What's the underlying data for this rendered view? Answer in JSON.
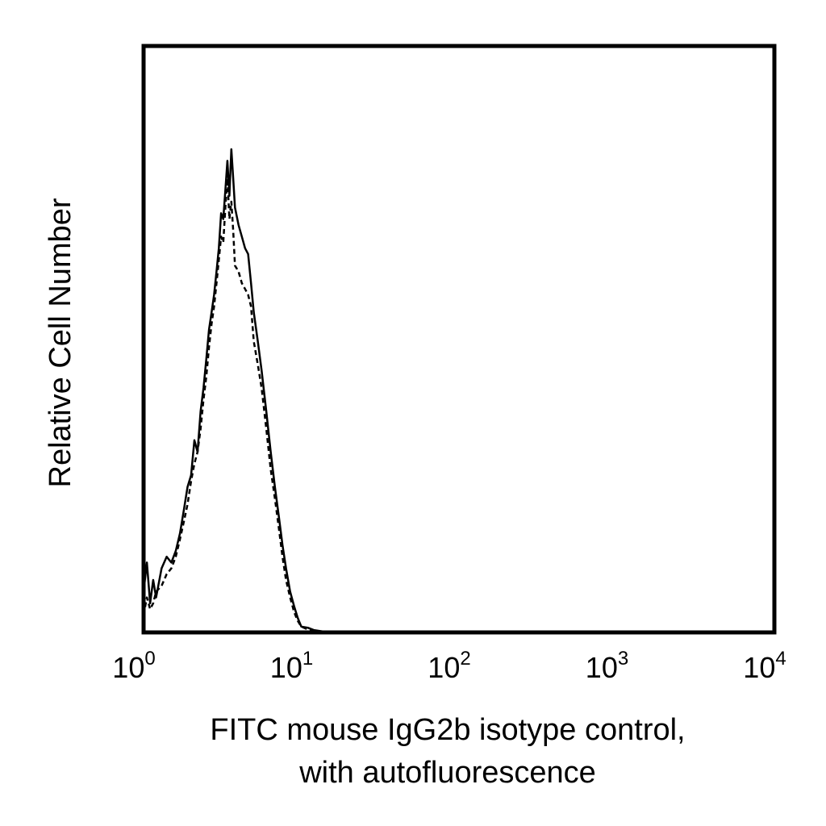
{
  "chart_data": {
    "type": "line",
    "title": "",
    "xlabel": "FITC mouse IgG2b isotype control,",
    "xlabel_line2": "with autofluorescence",
    "ylabel": "Relative Cell Number",
    "x_scale": "log",
    "xlim": [
      1,
      10000
    ],
    "ylim": [
      0,
      1
    ],
    "x_ticks": [
      {
        "base": "10",
        "exp": "0"
      },
      {
        "base": "10",
        "exp": "1"
      },
      {
        "base": "10",
        "exp": "2"
      },
      {
        "base": "10",
        "exp": "3"
      },
      {
        "base": "10",
        "exp": "4"
      }
    ],
    "grid": false,
    "series": [
      {
        "style": "solid",
        "color": "#000000",
        "x": [
          1.0,
          1.05,
          1.1,
          1.15,
          1.2,
          1.3,
          1.4,
          1.5,
          1.6,
          1.7,
          1.8,
          1.9,
          2.0,
          2.1,
          2.2,
          2.3,
          2.4,
          2.5,
          2.6,
          2.7,
          2.8,
          2.9,
          3.0,
          3.1,
          3.2,
          3.3,
          3.4,
          3.5,
          3.6,
          3.7,
          3.8,
          4.0,
          4.2,
          4.4,
          4.6,
          4.8,
          5.0,
          5.3,
          5.6,
          6.0,
          6.4,
          6.8,
          7.2,
          7.6,
          8.0,
          8.5,
          9.0,
          9.5,
          10.0,
          11.0,
          12.0,
          15.0,
          20.0,
          50.0,
          100.0,
          1000.0,
          10000.0
        ],
        "y": [
          0.07,
          0.12,
          0.05,
          0.09,
          0.06,
          0.11,
          0.13,
          0.12,
          0.14,
          0.17,
          0.21,
          0.25,
          0.27,
          0.33,
          0.31,
          0.38,
          0.42,
          0.47,
          0.52,
          0.55,
          0.58,
          0.62,
          0.66,
          0.72,
          0.71,
          0.76,
          0.81,
          0.75,
          0.83,
          0.78,
          0.73,
          0.7,
          0.68,
          0.66,
          0.65,
          0.6,
          0.55,
          0.5,
          0.45,
          0.38,
          0.31,
          0.25,
          0.2,
          0.15,
          0.11,
          0.07,
          0.045,
          0.025,
          0.01,
          0.008,
          0.004,
          0.0,
          0.0,
          0.0,
          0.0,
          0.0,
          0.0
        ]
      },
      {
        "style": "dashed",
        "color": "#000000",
        "x": [
          1.0,
          1.05,
          1.1,
          1.15,
          1.2,
          1.3,
          1.4,
          1.5,
          1.6,
          1.7,
          1.8,
          1.9,
          2.0,
          2.1,
          2.2,
          2.3,
          2.4,
          2.5,
          2.6,
          2.7,
          2.8,
          2.9,
          3.0,
          3.1,
          3.2,
          3.3,
          3.4,
          3.5,
          3.6,
          3.7,
          3.8,
          4.0,
          4.2,
          4.4,
          4.6,
          4.8,
          5.0,
          5.3,
          5.6,
          6.0,
          6.4,
          6.8,
          7.2,
          7.6,
          8.0,
          8.5,
          9.0,
          9.5,
          10.0,
          11.0,
          12.0,
          15.0,
          20.0,
          50.0,
          100.0,
          1000.0,
          10000.0
        ],
        "y": [
          0.03,
          0.06,
          0.04,
          0.05,
          0.07,
          0.08,
          0.1,
          0.11,
          0.13,
          0.16,
          0.19,
          0.22,
          0.26,
          0.29,
          0.31,
          0.35,
          0.4,
          0.44,
          0.49,
          0.53,
          0.56,
          0.6,
          0.64,
          0.68,
          0.67,
          0.73,
          0.78,
          0.71,
          0.74,
          0.69,
          0.63,
          0.62,
          0.6,
          0.59,
          0.58,
          0.56,
          0.5,
          0.46,
          0.42,
          0.35,
          0.28,
          0.23,
          0.18,
          0.13,
          0.09,
          0.06,
          0.035,
          0.02,
          0.01,
          0.005,
          0.002,
          0.0,
          0.0,
          0.0,
          0.0,
          0.0,
          0.0
        ]
      }
    ]
  }
}
